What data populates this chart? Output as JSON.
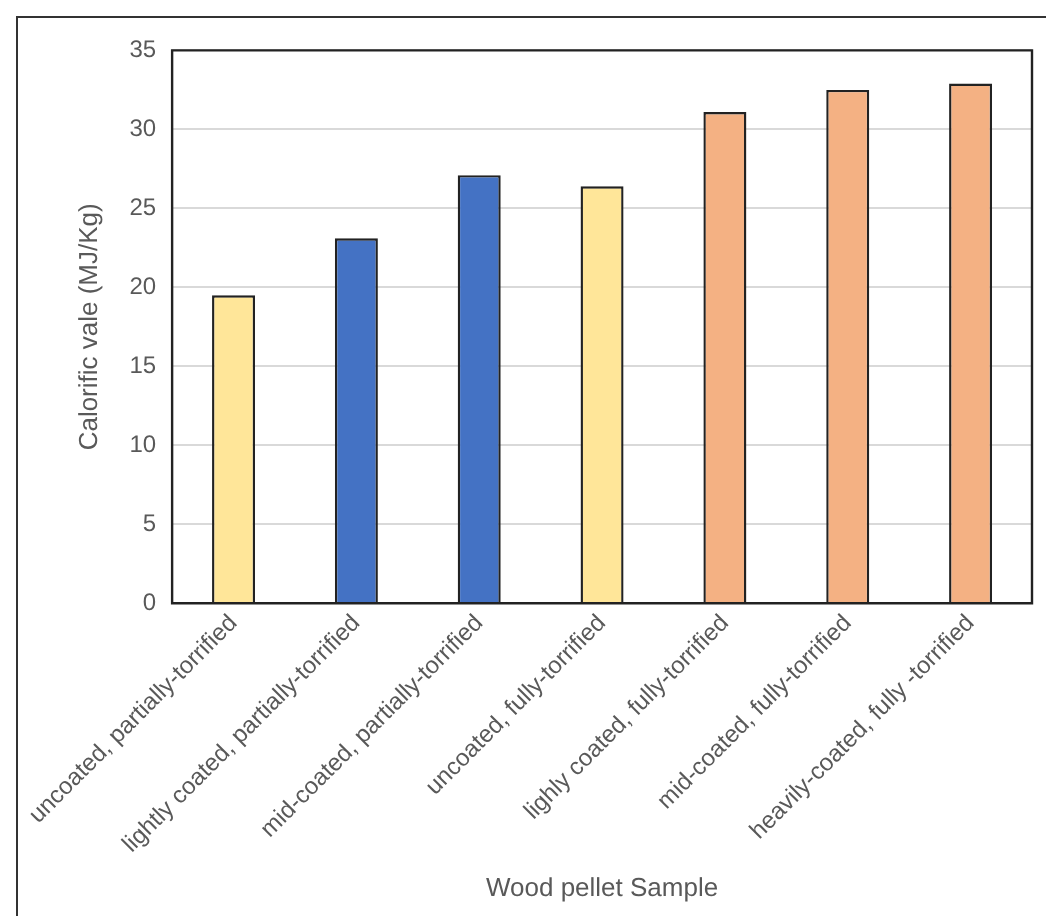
{
  "chart_data": {
    "type": "bar",
    "xlabel": "Wood pellet Sample",
    "ylabel": "Calorific vale (MJ/Kg)",
    "categories": [
      "uncoated, partially-torrified",
      "lightly coated, partially-torrified",
      "mid-coated, partially-torrified",
      "uncoated, fully-torrified",
      "lighly coated, fully-torrified",
      "mid-coated, fully-torrified",
      "heavily-coated, fully -torrified"
    ],
    "values": [
      19.5,
      23.1,
      27.1,
      26.4,
      31.1,
      32.5,
      32.9
    ],
    "colors": [
      "#ffe699",
      "#4472c4",
      "#4472c4",
      "#ffe699",
      "#f4b183",
      "#f4b183",
      "#f4b183"
    ],
    "ylim": [
      0,
      35
    ],
    "yticks": [
      0,
      5,
      10,
      15,
      20,
      25,
      30,
      35
    ],
    "grid": "y",
    "legend": false
  }
}
